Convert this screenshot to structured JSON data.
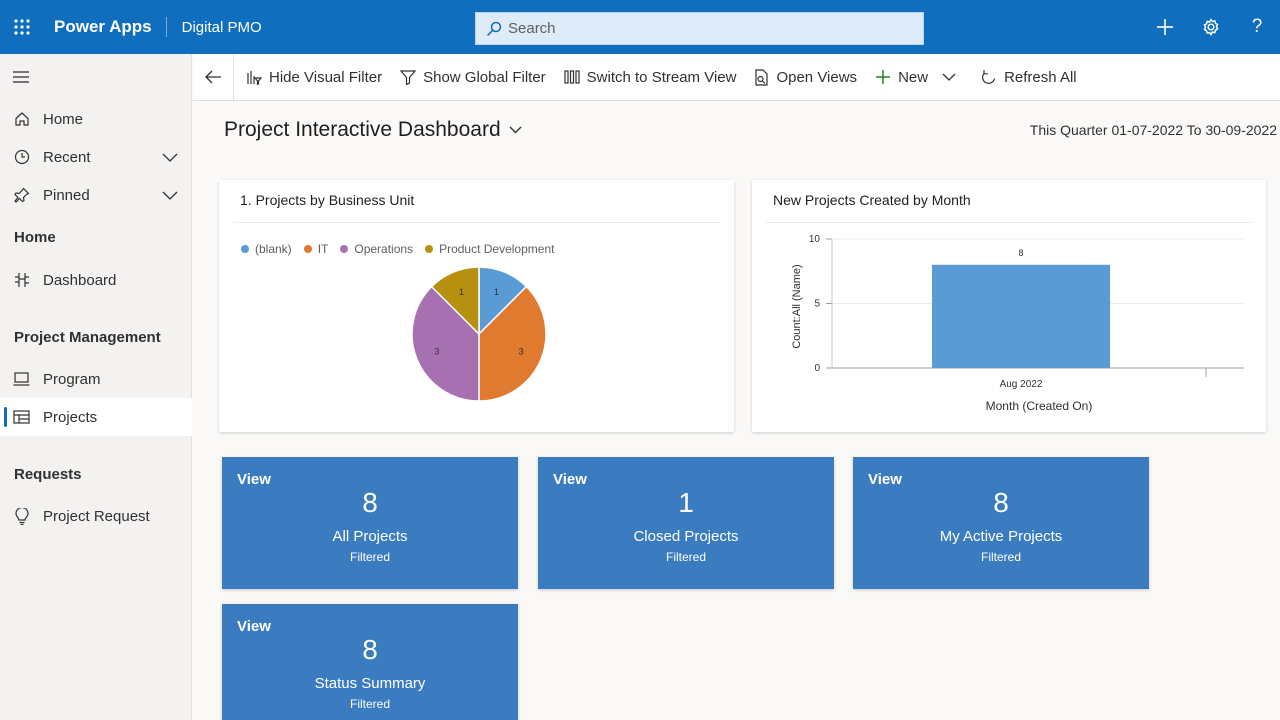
{
  "topbar": {
    "brand": "Power Apps",
    "app_name": "Digital PMO",
    "search_placeholder": "Search",
    "icons": [
      "waffle-icon",
      "plus-icon",
      "gear-icon",
      "help-icon"
    ],
    "accent": "#106ebe"
  },
  "sidebar": {
    "nav": [
      {
        "label": "Home",
        "icon": "home-icon"
      },
      {
        "label": "Recent",
        "icon": "clock-icon"
      },
      {
        "label": "Pinned",
        "icon": "pin-icon"
      }
    ],
    "groups": [
      {
        "title": "Home",
        "items": [
          {
            "label": "Dashboard",
            "icon": "dashboard-icon"
          }
        ]
      },
      {
        "title": "Project Management",
        "items": [
          {
            "label": "Program",
            "icon": "laptop-icon"
          },
          {
            "label": "Projects",
            "icon": "projects-icon",
            "active": true
          }
        ]
      },
      {
        "title": "Requests",
        "items": [
          {
            "label": "Project Request",
            "icon": "lightbulb-icon"
          }
        ]
      }
    ]
  },
  "commandbar": {
    "hide_visual_filter": "Hide Visual Filter",
    "show_global_filter": "Show Global Filter",
    "switch_stream": "Switch to Stream View",
    "open_views": "Open Views",
    "new": "New",
    "refresh_all": "Refresh All"
  },
  "dashboard": {
    "title": "Project Interactive Dashboard",
    "filter_text": "This Quarter 01-07-2022 To 30-09-2022"
  },
  "chart_data": [
    {
      "type": "pie",
      "title": "1. Projects by Business Unit",
      "categories": [
        "(blank)",
        "IT",
        "Operations",
        "Product Development"
      ],
      "values": [
        1,
        3,
        3,
        1
      ],
      "colors": [
        "#5b9bd5",
        "#e07a2f",
        "#a770b0",
        "#b8900f"
      ],
      "legend": "top-left"
    },
    {
      "type": "bar",
      "title": "New Projects Created by Month",
      "categories": [
        "Aug 2022"
      ],
      "values": [
        8
      ],
      "xlabel": "Month (Created On)",
      "ylabel": "Count:All (Name)",
      "ylim": [
        0,
        10
      ],
      "yticks": [
        "0",
        "5",
        "10"
      ],
      "color": "#5b9bd5",
      "grid": true
    }
  ],
  "tiles": [
    {
      "view": "View",
      "count": "8",
      "label": "All Projects",
      "sub": "Filtered"
    },
    {
      "view": "View",
      "count": "1",
      "label": "Closed Projects",
      "sub": "Filtered"
    },
    {
      "view": "View",
      "count": "8",
      "label": "My Active Projects",
      "sub": "Filtered"
    },
    {
      "view": "View",
      "count": "8",
      "label": "Status Summary",
      "sub": "Filtered"
    }
  ]
}
